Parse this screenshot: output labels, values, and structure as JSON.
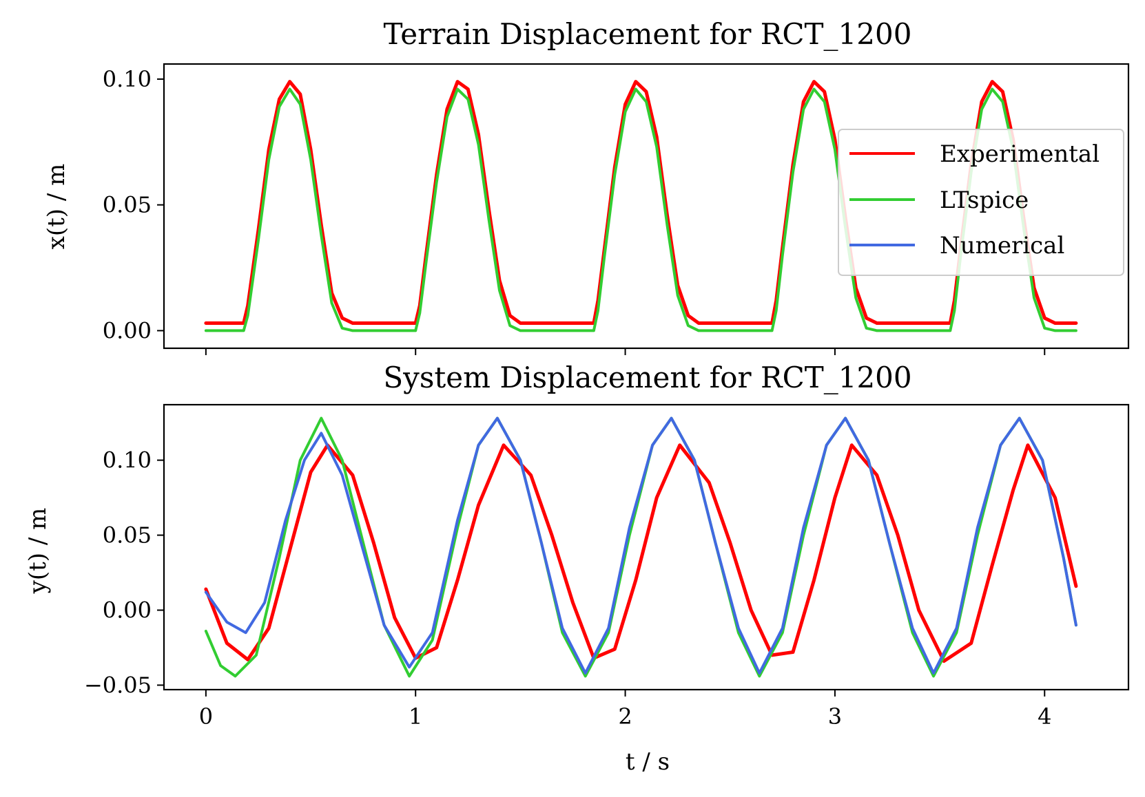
{
  "colors": {
    "experimental": "#ff0000",
    "ltspice": "#32cd32",
    "numerical": "#4169e1"
  },
  "chart_data": [
    {
      "type": "line",
      "title": "Terrain Displacement for RCT_1200",
      "xlabel": "",
      "ylabel": "x(t) / m",
      "xlim": [
        -0.2,
        4.4
      ],
      "ylim": [
        -0.007,
        0.106
      ],
      "grid": false,
      "legend": {
        "position": "right",
        "entries": [
          "Experimental",
          "LTspice",
          "Numerical"
        ]
      },
      "xticks": [
        0,
        1,
        2,
        3,
        4
      ],
      "xtick_labels": [],
      "yticks": [
        0.0,
        0.05,
        0.1
      ],
      "ytick_labels": [
        "0.00",
        "0.05",
        "0.10"
      ],
      "series": [
        {
          "name": "Experimental",
          "x": [
            0,
            0.18,
            0.2,
            0.25,
            0.3,
            0.35,
            0.4,
            0.45,
            0.5,
            0.55,
            0.6,
            0.65,
            0.7,
            1.0,
            1.02,
            1.05,
            1.1,
            1.15,
            1.2,
            1.25,
            1.3,
            1.35,
            1.4,
            1.45,
            1.5,
            1.55,
            1.85,
            1.87,
            1.9,
            1.95,
            2.0,
            2.05,
            2.1,
            2.15,
            2.2,
            2.25,
            2.3,
            2.35,
            2.4,
            2.7,
            2.72,
            2.75,
            2.8,
            2.85,
            2.9,
            2.95,
            3.0,
            3.05,
            3.1,
            3.15,
            3.2,
            3.25,
            3.55,
            3.57,
            3.6,
            3.65,
            3.7,
            3.75,
            3.8,
            3.85,
            3.9,
            3.95,
            4.0,
            4.05,
            4.1,
            4.15
          ],
          "y": [
            0.003,
            0.003,
            0.01,
            0.04,
            0.072,
            0.092,
            0.099,
            0.094,
            0.072,
            0.042,
            0.015,
            0.005,
            0.003,
            0.003,
            0.01,
            0.03,
            0.062,
            0.088,
            0.099,
            0.096,
            0.078,
            0.048,
            0.02,
            0.006,
            0.003,
            0.003,
            0.003,
            0.012,
            0.032,
            0.065,
            0.09,
            0.099,
            0.095,
            0.077,
            0.046,
            0.018,
            0.006,
            0.003,
            0.003,
            0.003,
            0.012,
            0.033,
            0.066,
            0.091,
            0.099,
            0.095,
            0.076,
            0.045,
            0.017,
            0.005,
            0.003,
            0.003,
            0.003,
            0.012,
            0.033,
            0.066,
            0.091,
            0.099,
            0.095,
            0.076,
            0.045,
            0.017,
            0.005,
            0.003,
            0.003,
            0.003
          ]
        },
        {
          "name": "LTspice",
          "x": [
            0,
            0.18,
            0.2,
            0.25,
            0.3,
            0.35,
            0.4,
            0.45,
            0.5,
            0.55,
            0.6,
            0.65,
            0.7,
            1.0,
            1.02,
            1.05,
            1.1,
            1.15,
            1.2,
            1.25,
            1.3,
            1.35,
            1.4,
            1.45,
            1.5,
            1.55,
            1.85,
            1.87,
            1.9,
            1.95,
            2.0,
            2.05,
            2.1,
            2.15,
            2.2,
            2.25,
            2.3,
            2.35,
            2.4,
            2.7,
            2.72,
            2.75,
            2.8,
            2.85,
            2.9,
            2.95,
            3.0,
            3.05,
            3.1,
            3.15,
            3.2,
            3.25,
            3.55,
            3.57,
            3.6,
            3.65,
            3.7,
            3.75,
            3.8,
            3.85,
            3.9,
            3.95,
            4.0,
            4.05,
            4.1,
            4.15
          ],
          "y": [
            0.0,
            0.0,
            0.006,
            0.036,
            0.068,
            0.089,
            0.096,
            0.09,
            0.068,
            0.038,
            0.011,
            0.001,
            0.0,
            0.0,
            0.007,
            0.027,
            0.059,
            0.085,
            0.096,
            0.092,
            0.074,
            0.044,
            0.016,
            0.002,
            0.0,
            0.0,
            0.0,
            0.008,
            0.029,
            0.062,
            0.087,
            0.096,
            0.091,
            0.073,
            0.042,
            0.014,
            0.002,
            0.0,
            0.0,
            0.0,
            0.008,
            0.03,
            0.063,
            0.088,
            0.096,
            0.091,
            0.072,
            0.041,
            0.013,
            0.001,
            0.0,
            0.0,
            0.0,
            0.008,
            0.03,
            0.063,
            0.088,
            0.096,
            0.091,
            0.072,
            0.041,
            0.013,
            0.001,
            0.0,
            0.0,
            0.0
          ]
        }
      ]
    },
    {
      "type": "line",
      "title": "System Displacement for RCT_1200",
      "xlabel": "t / s",
      "ylabel": "y(t) / m",
      "xlim": [
        -0.2,
        4.4
      ],
      "ylim": [
        -0.053,
        0.137
      ],
      "grid": false,
      "xticks": [
        0,
        1,
        2,
        3,
        4
      ],
      "xtick_labels": [
        "0",
        "1",
        "2",
        "3",
        "4"
      ],
      "yticks": [
        -0.05,
        0.0,
        0.05,
        0.1
      ],
      "ytick_labels": [
        "−0.05",
        "0.00",
        "0.05",
        "0.10"
      ],
      "series": [
        {
          "name": "Experimental",
          "x": [
            0,
            0.1,
            0.2,
            0.3,
            0.4,
            0.5,
            0.58,
            0.7,
            0.8,
            0.9,
            1.0,
            1.1,
            1.2,
            1.3,
            1.42,
            1.55,
            1.65,
            1.75,
            1.85,
            1.95,
            2.05,
            2.15,
            2.26,
            2.4,
            2.5,
            2.6,
            2.7,
            2.8,
            2.9,
            3.0,
            3.08,
            3.2,
            3.3,
            3.4,
            3.52,
            3.65,
            3.75,
            3.85,
            3.92,
            4.05,
            4.15
          ],
          "y": [
            0.014,
            -0.022,
            -0.033,
            -0.012,
            0.04,
            0.092,
            0.11,
            0.09,
            0.045,
            -0.005,
            -0.032,
            -0.025,
            0.02,
            0.07,
            0.11,
            0.09,
            0.05,
            0.005,
            -0.032,
            -0.026,
            0.02,
            0.075,
            0.11,
            0.085,
            0.045,
            0.0,
            -0.03,
            -0.028,
            0.02,
            0.075,
            0.11,
            0.09,
            0.05,
            0.0,
            -0.034,
            -0.022,
            0.03,
            0.08,
            0.11,
            0.075,
            0.016
          ]
        },
        {
          "name": "LTspice",
          "x": [
            0,
            0.07,
            0.14,
            0.24,
            0.35,
            0.45,
            0.55,
            0.65,
            0.75,
            0.85,
            0.97,
            1.08,
            1.2,
            1.3,
            1.39,
            1.5,
            1.6,
            1.7,
            1.81,
            1.92,
            2.02,
            2.13,
            2.22,
            2.33,
            2.43,
            2.54,
            2.64,
            2.75,
            2.85,
            2.96,
            3.05,
            3.16,
            3.26,
            3.37,
            3.47,
            3.58,
            3.68,
            3.79,
            3.88,
            3.99,
            4.09,
            4.15
          ],
          "y": [
            -0.014,
            -0.037,
            -0.044,
            -0.03,
            0.035,
            0.1,
            0.128,
            0.1,
            0.045,
            -0.01,
            -0.044,
            -0.02,
            0.055,
            0.11,
            0.128,
            0.1,
            0.045,
            -0.015,
            -0.044,
            -0.015,
            0.05,
            0.11,
            0.128,
            0.1,
            0.045,
            -0.015,
            -0.044,
            -0.015,
            0.05,
            0.11,
            0.128,
            0.1,
            0.045,
            -0.015,
            -0.044,
            -0.015,
            0.05,
            0.11,
            0.128,
            0.1,
            0.035,
            -0.01
          ]
        },
        {
          "name": "Numerical",
          "x": [
            0,
            0.1,
            0.19,
            0.28,
            0.38,
            0.47,
            0.55,
            0.65,
            0.75,
            0.85,
            0.97,
            1.08,
            1.2,
            1.3,
            1.39,
            1.5,
            1.6,
            1.7,
            1.81,
            1.92,
            2.02,
            2.13,
            2.22,
            2.33,
            2.43,
            2.54,
            2.64,
            2.75,
            2.85,
            2.96,
            3.05,
            3.16,
            3.26,
            3.37,
            3.47,
            3.58,
            3.68,
            3.79,
            3.88,
            3.99,
            4.09,
            4.15
          ],
          "y": [
            0.012,
            -0.008,
            -0.015,
            0.005,
            0.06,
            0.1,
            0.118,
            0.09,
            0.04,
            -0.01,
            -0.038,
            -0.015,
            0.06,
            0.11,
            0.128,
            0.1,
            0.045,
            -0.012,
            -0.042,
            -0.012,
            0.055,
            0.11,
            0.128,
            0.1,
            0.045,
            -0.012,
            -0.042,
            -0.012,
            0.055,
            0.11,
            0.128,
            0.1,
            0.045,
            -0.012,
            -0.042,
            -0.012,
            0.055,
            0.11,
            0.128,
            0.1,
            0.035,
            -0.01
          ]
        }
      ]
    }
  ]
}
